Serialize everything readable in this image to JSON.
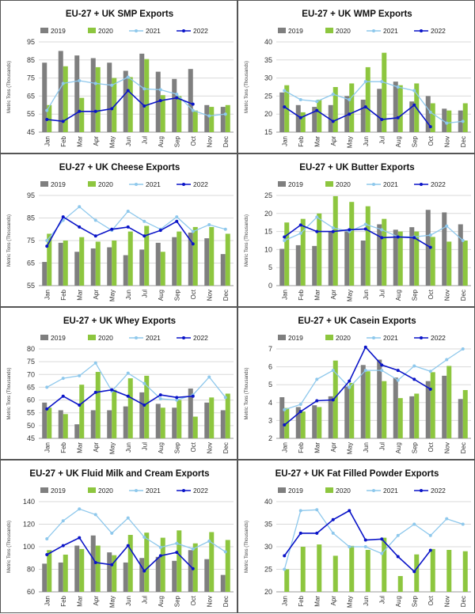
{
  "colors": {
    "c2019": "#7f7f7f",
    "c2020": "#8dc63f",
    "c2021": "#8ec8ec",
    "c2022": "#0a14c8",
    "grid": "#d9d9d9"
  },
  "legend": [
    "2019",
    "2020",
    "2021",
    "2022"
  ],
  "months": [
    "Jan",
    "Feb",
    "Mar",
    "Apr",
    "May",
    "Jun",
    "Jul",
    "Aug",
    "Sep",
    "Oct",
    "Nov",
    "Dec"
  ],
  "chart_data": [
    {
      "type": "bar",
      "title": "EU-27 + UK SMP Exports",
      "ylabel": "Metric Tons (Thousands)",
      "ylim": [
        45,
        95
      ],
      "yticks": [
        45,
        55,
        65,
        75,
        85,
        95
      ],
      "series": [
        {
          "name": "2019",
          "kind": "bar",
          "values": [
            83.5,
            90,
            87.5,
            86,
            83.5,
            79,
            88.5,
            78.5,
            74.5,
            80,
            60,
            59
          ]
        },
        {
          "name": "2020",
          "kind": "bar",
          "values": [
            60,
            81.5,
            64,
            81,
            75,
            75.5,
            85.5,
            65.5,
            65,
            57,
            59,
            60
          ]
        },
        {
          "name": "2021",
          "kind": "line",
          "values": [
            57,
            72,
            73.5,
            72,
            71,
            75.5,
            69,
            68.5,
            66,
            57,
            54,
            55
          ]
        },
        {
          "name": "2022",
          "kind": "line",
          "values": [
            52,
            51,
            56.5,
            56.5,
            58,
            68,
            59.5,
            62.5,
            64,
            60.5,
            null,
            null
          ]
        }
      ]
    },
    {
      "type": "bar",
      "title": "EU-27 + UK WMP Exports",
      "ylabel": "Metric Tons (Thousands)",
      "ylim": [
        15,
        40
      ],
      "yticks": [
        15,
        20,
        25,
        30,
        35,
        40
      ],
      "series": [
        {
          "name": "2019",
          "kind": "bar",
          "values": [
            26,
            22.5,
            22,
            22.5,
            25,
            24,
            27,
            29,
            23.5,
            25,
            21.5,
            21
          ]
        },
        {
          "name": "2020",
          "kind": "bar",
          "values": [
            28,
            20.5,
            24,
            27.5,
            28.5,
            33,
            37,
            28,
            28.5,
            23,
            21,
            23
          ]
        },
        {
          "name": "2021",
          "kind": "line",
          "values": [
            26.5,
            24,
            23.5,
            25.5,
            24,
            29,
            29,
            27.5,
            26.5,
            20.5,
            17.5,
            18
          ]
        },
        {
          "name": "2022",
          "kind": "line",
          "values": [
            22,
            19,
            21,
            18,
            20,
            22,
            18.5,
            19,
            22.5,
            16.5,
            null,
            null
          ]
        }
      ]
    },
    {
      "type": "bar",
      "title": "EU-27 + UK Cheese Exports",
      "ylabel": "Metric Tons (Thousands)",
      "ylim": [
        55,
        95
      ],
      "yticks": [
        55,
        65,
        75,
        85,
        95
      ],
      "series": [
        {
          "name": "2019",
          "kind": "bar",
          "values": [
            65.5,
            74,
            70,
            71.5,
            72,
            68.5,
            71,
            74,
            76.5,
            78.5,
            76,
            69
          ]
        },
        {
          "name": "2020",
          "kind": "bar",
          "values": [
            78,
            75,
            76.5,
            74.5,
            75,
            79,
            81.5,
            70,
            79,
            81,
            81,
            78
          ]
        },
        {
          "name": "2021",
          "kind": "line",
          "values": [
            75,
            84,
            90,
            84,
            79.5,
            88,
            83.5,
            80,
            85.5,
            79,
            82,
            80
          ]
        },
        {
          "name": "2022",
          "kind": "line",
          "values": [
            72.5,
            85.5,
            81,
            77,
            80,
            81,
            77,
            79.5,
            83.5,
            73.5,
            null,
            null
          ]
        }
      ]
    },
    {
      "type": "bar",
      "title": "EU-27 + UK Butter Exports",
      "ylabel": "Metric Tons (Thousands)",
      "ylim": [
        0,
        25
      ],
      "yticks": [
        0,
        5,
        10,
        15,
        20,
        25
      ],
      "series": [
        {
          "name": "2019",
          "kind": "bar",
          "values": [
            10.2,
            11.2,
            11,
            15.1,
            15,
            12.5,
            17,
            15.5,
            16.2,
            21,
            20.3,
            17
          ]
        },
        {
          "name": "2020",
          "kind": "bar",
          "values": [
            17.5,
            18.5,
            20,
            24.8,
            23.2,
            22,
            18.5,
            15,
            15,
            13.5,
            12.2,
            12.5
          ]
        },
        {
          "name": "2021",
          "kind": "line",
          "values": [
            12.5,
            14.5,
            19,
            16,
            15,
            17,
            15.5,
            13.5,
            13.5,
            14,
            16.5,
            12.5
          ]
        },
        {
          "name": "2022",
          "kind": "line",
          "values": [
            13.5,
            16.8,
            15,
            15,
            15.5,
            15.7,
            13.3,
            13.5,
            13.3,
            10.6,
            null,
            null
          ]
        }
      ]
    },
    {
      "type": "bar",
      "title": "EU-27 + UK Whey Exports",
      "ylabel": "Metric Tons (Thousands)",
      "ylim": [
        45,
        80
      ],
      "yticks": [
        45,
        50,
        55,
        60,
        65,
        70,
        75,
        80
      ],
      "series": [
        {
          "name": "2019",
          "kind": "bar",
          "values": [
            59,
            56,
            50.5,
            56,
            56,
            57.5,
            63,
            58.5,
            57,
            64.5,
            59,
            56
          ]
        },
        {
          "name": "2020",
          "kind": "bar",
          "values": [
            57,
            54.5,
            66,
            71,
            64,
            68.5,
            69.5,
            57,
            60,
            53.5,
            61,
            62.5
          ]
        },
        {
          "name": "2021",
          "kind": "line",
          "values": [
            65,
            68.5,
            69.5,
            74.5,
            63.5,
            70.5,
            66.5,
            60.5,
            60,
            62,
            69,
            61
          ]
        },
        {
          "name": "2022",
          "kind": "line",
          "values": [
            56.5,
            61.5,
            58,
            63,
            64,
            61.5,
            58,
            62,
            61,
            61.5,
            null,
            null
          ]
        }
      ]
    },
    {
      "type": "bar",
      "title": "EU-27 + UK Casein Exports",
      "ylabel": "Metric Tons (Thousands)",
      "ylim": [
        2,
        7
      ],
      "yticks": [
        2,
        3,
        4,
        5,
        6,
        7
      ],
      "series": [
        {
          "name": "2019",
          "kind": "bar",
          "values": [
            4.3,
            3.75,
            3.85,
            4.35,
            4.9,
            6.1,
            6.4,
            5.4,
            4.35,
            5.2,
            5.5,
            4.2
          ]
        },
        {
          "name": "2020",
          "kind": "bar",
          "values": [
            3.7,
            3.5,
            3.75,
            6.35,
            5.1,
            5.75,
            5.2,
            4.25,
            4.5,
            5.7,
            6.05,
            4.7
          ]
        },
        {
          "name": "2021",
          "kind": "line",
          "values": [
            3.6,
            3.9,
            5.3,
            5.8,
            4.85,
            5.8,
            5.8,
            5.25,
            6.05,
            5.75,
            6.4,
            7.0
          ]
        },
        {
          "name": "2022",
          "kind": "line",
          "values": [
            2.75,
            3.5,
            4.1,
            4.15,
            5.2,
            7.1,
            6.1,
            5.8,
            5.3,
            4.75,
            null,
            null
          ]
        }
      ]
    },
    {
      "type": "bar",
      "title": "EU-27 + UK Fluid Milk and Cream Exports",
      "ylabel": "Metric Tons (Thousands)",
      "ylim": [
        60,
        140
      ],
      "yticks": [
        60,
        80,
        100,
        120,
        140
      ],
      "series": [
        {
          "name": "2019",
          "kind": "bar",
          "values": [
            85,
            86,
            101,
            110,
            95,
            86,
            90,
            91,
            87.5,
            97,
            89,
            75
          ]
        },
        {
          "name": "2020",
          "kind": "bar",
          "values": [
            97,
            93,
            98,
            101,
            92.5,
            110.5,
            112.5,
            108,
            114.5,
            103,
            113,
            106
          ]
        },
        {
          "name": "2021",
          "kind": "line",
          "values": [
            107,
            123,
            133.5,
            128.5,
            112,
            125.5,
            108.5,
            99.5,
            103,
            98,
            105,
            95.5
          ]
        },
        {
          "name": "2022",
          "kind": "line",
          "values": [
            93,
            101,
            108,
            86,
            84,
            101,
            78.5,
            92,
            95,
            80.5,
            null,
            null
          ]
        }
      ]
    },
    {
      "type": "bar",
      "title": "EU-27 + UK Fat Filled Powder Exports",
      "ylabel": "Metric Tons (Thousands)",
      "ylim": [
        20,
        40
      ],
      "yticks": [
        20,
        25,
        30,
        35,
        40
      ],
      "series": [
        {
          "name": "2019",
          "kind": "bar",
          "values": [
            null,
            null,
            null,
            null,
            null,
            null,
            null,
            null,
            null,
            null,
            null,
            null
          ]
        },
        {
          "name": "2020",
          "kind": "bar",
          "values": [
            25,
            30,
            30.5,
            28,
            30.2,
            29.3,
            32,
            23.5,
            28.3,
            29.5,
            29.3,
            29
          ]
        },
        {
          "name": "2021",
          "kind": "line",
          "values": [
            25,
            38,
            38.2,
            33,
            30,
            30,
            28.5,
            32.5,
            35,
            32.5,
            36.2,
            35
          ]
        },
        {
          "name": "2022",
          "kind": "line",
          "values": [
            28,
            33,
            33,
            36,
            38,
            31.5,
            31.7,
            27.8,
            24.5,
            29.2,
            null,
            null
          ]
        }
      ]
    }
  ]
}
